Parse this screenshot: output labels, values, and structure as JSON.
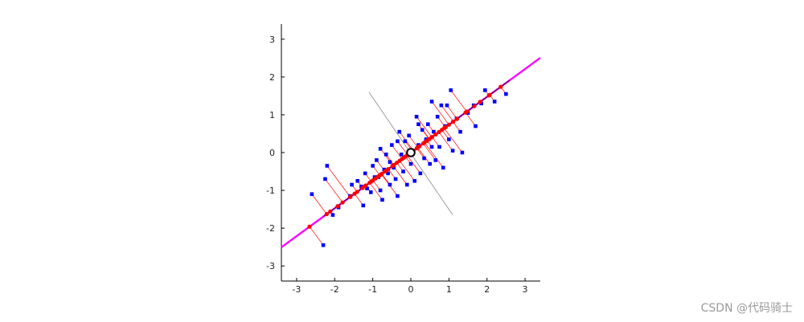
{
  "chart_data": {
    "type": "scatter",
    "title": "",
    "xlabel": "",
    "ylabel": "",
    "xlim": [
      -3.4,
      3.4
    ],
    "ylim": [
      -3.4,
      3.4
    ],
    "xticks": [
      -3,
      -2,
      -1,
      0,
      1,
      2,
      3
    ],
    "yticks": [
      -3,
      -2,
      -1,
      0,
      1,
      2,
      3
    ],
    "grid": false,
    "principal_axis": {
      "slope": 0.737,
      "range": [
        -3.4,
        3.4
      ]
    },
    "secondary_axis": {
      "from": [
        -1.1,
        1.6
      ],
      "to": [
        1.1,
        -1.65
      ]
    },
    "mean": [
      0.0,
      0.0
    ],
    "series": [
      {
        "values": [
          [
            -2.6,
            -1.1
          ],
          [
            -2.3,
            -2.45
          ],
          [
            -2.2,
            -0.35
          ],
          [
            -2.25,
            -0.7
          ],
          [
            -2.05,
            -1.65
          ],
          [
            -1.9,
            -1.45
          ],
          [
            -1.6,
            -1.15
          ],
          [
            -1.4,
            -0.75
          ],
          [
            -1.3,
            -0.9
          ],
          [
            -1.25,
            -1.4
          ],
          [
            -1.2,
            -0.55
          ],
          [
            -1.15,
            -0.95
          ],
          [
            -1.05,
            -1.05
          ],
          [
            -1.0,
            -0.35
          ],
          [
            -0.9,
            -0.2
          ],
          [
            -0.85,
            -0.65
          ],
          [
            -0.8,
            -1.0
          ],
          [
            -0.75,
            -1.25
          ],
          [
            -0.7,
            -0.45
          ],
          [
            -0.65,
            -0.05
          ],
          [
            -0.6,
            -0.55
          ],
          [
            -0.55,
            -0.85
          ],
          [
            -0.55,
            -0.25
          ],
          [
            -0.5,
            0.2
          ],
          [
            -0.45,
            -0.4
          ],
          [
            -0.4,
            -0.7
          ],
          [
            -0.35,
            -1.15
          ],
          [
            -0.3,
            0.55
          ],
          [
            -0.25,
            -0.05
          ],
          [
            -0.2,
            -0.5
          ],
          [
            -0.15,
            0.3
          ],
          [
            -0.1,
            -0.85
          ],
          [
            -0.05,
            0.45
          ],
          [
            0.0,
            -0.3
          ],
          [
            0.05,
            0.05
          ],
          [
            0.1,
            -0.75
          ],
          [
            0.15,
            0.95
          ],
          [
            0.2,
            0.2
          ],
          [
            0.25,
            -0.55
          ],
          [
            0.3,
            0.6
          ],
          [
            0.35,
            -0.15
          ],
          [
            0.4,
            0.35
          ],
          [
            0.45,
            0.75
          ],
          [
            0.5,
            -0.3
          ],
          [
            0.55,
            0.15
          ],
          [
            0.6,
            0.55
          ],
          [
            0.65,
            -0.2
          ],
          [
            0.7,
            0.95
          ],
          [
            0.8,
            1.25
          ],
          [
            0.85,
            -0.4
          ],
          [
            0.9,
            0.7
          ],
          [
            1.0,
            0.35
          ],
          [
            1.05,
            1.65
          ],
          [
            1.1,
            0.05
          ],
          [
            1.2,
            0.9
          ],
          [
            1.3,
            0.55
          ],
          [
            1.35,
            0.0
          ],
          [
            1.5,
            1.05
          ],
          [
            1.65,
            1.25
          ],
          [
            1.7,
            0.7
          ],
          [
            1.85,
            1.3
          ],
          [
            1.95,
            1.65
          ],
          [
            2.2,
            1.35
          ],
          [
            2.5,
            1.55
          ],
          [
            0.95,
            1.25
          ],
          [
            -0.95,
            -0.65
          ],
          [
            0.2,
            0.75
          ],
          [
            -0.35,
            0.3
          ],
          [
            0.75,
            0.15
          ],
          [
            -1.55,
            -0.85
          ],
          [
            0.55,
            1.35
          ],
          [
            -0.8,
            0.1
          ]
        ]
      }
    ]
  },
  "watermark": "CSDN @代码骑士",
  "colors": {
    "data_points": "#0000ff",
    "projections": "#ff0000",
    "principal_axis_outer": "#ff00ff",
    "principal_axis_inner": "#000000",
    "secondary_axis": "#8a8a8a",
    "axes": "#000000"
  }
}
